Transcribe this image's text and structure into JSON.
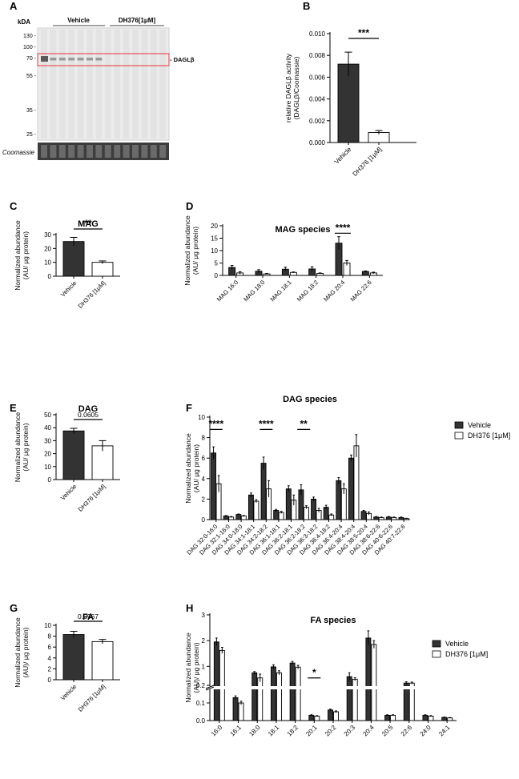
{
  "panel_labels": [
    "A",
    "B",
    "C",
    "D",
    "E",
    "F",
    "G",
    "H"
  ],
  "blot": {
    "kda_label": "kDA",
    "markers": [
      "130 -",
      "100 -",
      "70 -",
      "55 -",
      "35 -",
      "25 -"
    ],
    "lane_groups": [
      "Vehicle",
      "DH376[1μM]"
    ],
    "band_label": "- DAGLβ",
    "loading_label": "Coomassie"
  },
  "legend": {
    "vehicle": "Vehicle",
    "treated": "DH376 [1μM]"
  },
  "colors": {
    "vehicle": "#333333",
    "treated": "#ffffff",
    "highlight": "#e8323c"
  },
  "chart_data": [
    {
      "id": "B",
      "type": "bar",
      "title": "",
      "ylabel": "relative DAGLβ activity\n(DAGLβ/Coomassie)",
      "ylim": [
        0,
        0.01
      ],
      "yticks": [
        "0.000",
        "0.002",
        "0.004",
        "0.006",
        "0.008",
        "0.010"
      ],
      "categories": [
        "Vehicle",
        "DH376 [1μM]"
      ],
      "values": [
        0.0072,
        0.00092
      ],
      "errors": [
        0.0011,
        0.00018
      ],
      "annotations": [
        {
          "text": "***"
        }
      ]
    },
    {
      "id": "C",
      "type": "bar",
      "title": "MAG",
      "ylabel": "Normalized abundance\n(AU/ μg protein)",
      "ylim": [
        0,
        30
      ],
      "yticks": [
        "0",
        "10",
        "20",
        "30"
      ],
      "categories": [
        "Vehicle",
        "DH376 [1μM]"
      ],
      "values": [
        25,
        10
      ],
      "errors": [
        3,
        1
      ],
      "annotations": [
        {
          "text": "**"
        }
      ]
    },
    {
      "id": "D",
      "type": "bar",
      "title": "MAG species",
      "ylabel": "Normalized abundance\n(AU/ μg protein)",
      "ylim": [
        0,
        20
      ],
      "yticks": [
        "0",
        "5",
        "10",
        "15",
        "20"
      ],
      "categories": [
        "MAG 16:0",
        "MAG 18:0",
        "MAG 18:1",
        "MAG 18:2",
        "MAG 20:4",
        "MAG 22:6"
      ],
      "series": [
        {
          "values": [
            3.2,
            1.7,
            2.5,
            2.6,
            13.0,
            1.6
          ],
          "errors": [
            0.8,
            0.6,
            0.8,
            0.9,
            2.6,
            0.2
          ]
        },
        {
          "values": [
            1.0,
            0.6,
            1.2,
            0.8,
            5.0,
            1.0
          ],
          "errors": [
            0.5,
            0.2,
            0.2,
            0.2,
            1.0,
            0.3
          ]
        }
      ],
      "annotations": [
        {
          "text": "****"
        }
      ]
    },
    {
      "id": "E",
      "type": "bar",
      "title": "DAG",
      "ylabel": "Normalized abundance\n(AU/ μg protein)",
      "ylim": [
        0,
        50
      ],
      "yticks": [
        "0",
        "10",
        "20",
        "30",
        "40",
        "50"
      ],
      "categories": [
        "Vehicle",
        "DH376 [1μM]"
      ],
      "values": [
        37.5,
        26
      ],
      "errors": [
        2,
        4
      ],
      "annotations": [
        {
          "text": "0.0605"
        }
      ]
    },
    {
      "id": "F",
      "type": "bar",
      "title": "DAG species",
      "ylabel": "Normalized abundance\n(AU/ μg protein)",
      "ylim": [
        0,
        10
      ],
      "yticks": [
        "0",
        "2",
        "4",
        "6",
        "8",
        "10"
      ],
      "categories": [
        "DAG 32:0-16:0",
        "DAG 32:1-16:0",
        "DAG 34:0-18:0",
        "DAG 34:1-18:1",
        "DAG 34:2-18:2",
        "DAG 36:1-18:1",
        "DAG 36:2-18:1",
        "DAG 36:2-18:2",
        "DAG 36:3-18:2",
        "DAG 36:4-18:2",
        "DAG 36:4-20:4",
        "DAG 38:4-20:4",
        "DAG 38:5-20:4",
        "DAG 38:6-22:6",
        "DAG 40:6-22:6",
        "DAG 40:7-22:6"
      ],
      "series": [
        {
          "name": "Vehicle",
          "values": [
            6.5,
            0.35,
            0.5,
            2.4,
            5.5,
            0.9,
            3.0,
            2.9,
            2.0,
            1.2,
            3.8,
            6.0,
            0.8,
            0.25,
            0.25,
            0.2
          ],
          "errors": [
            0.6,
            0.05,
            0.05,
            0.2,
            0.6,
            0.1,
            0.3,
            0.5,
            0.2,
            0.2,
            0.3,
            0.3,
            0.1,
            0.05,
            0.05,
            0.05
          ]
        },
        {
          "name": "DH376 [1μM]",
          "values": [
            3.5,
            0.25,
            0.35,
            1.8,
            3.0,
            0.7,
            1.9,
            1.2,
            0.9,
            0.45,
            3.0,
            7.2,
            0.6,
            0.2,
            0.2,
            0.1
          ],
          "errors": [
            0.8,
            0.05,
            0.05,
            0.15,
            0.8,
            0.1,
            0.5,
            0.15,
            0.2,
            0.1,
            0.5,
            1.1,
            0.15,
            0.05,
            0.05,
            0.03
          ]
        }
      ],
      "annotations": [
        {
          "text": "****"
        },
        {
          "text": "****"
        },
        {
          "text": "**"
        }
      ],
      "legend": "top-right"
    },
    {
      "id": "G",
      "type": "bar",
      "title": "FA",
      "ylabel": "Normalized abundance\n(AU)/ μg protein)",
      "ylim": [
        0,
        10
      ],
      "yticks": [
        "0",
        "2",
        "4",
        "6",
        "8",
        "10"
      ],
      "categories": [
        "Vehicle",
        "DH376 [1μM]"
      ],
      "values": [
        8.3,
        7.0
      ],
      "errors": [
        0.6,
        0.4
      ],
      "annotations": [
        {
          "text": "0.0967"
        }
      ]
    },
    {
      "id": "H",
      "type": "bar",
      "title": "FA species",
      "ylabel": "Normalized abundance\n(AU)/ μg protein)",
      "ylim": [
        0,
        3
      ],
      "axis_break": [
        0.2,
        0.2
      ],
      "yticks": [
        "0.0",
        "0.1",
        "0.2",
        "1",
        "2",
        "3"
      ],
      "categories": [
        "16:0",
        "16:1",
        "18:0",
        "18:1",
        "18:2",
        "20:1",
        "20:2",
        "20:3",
        "20:4",
        "20:5",
        "22:6",
        "24:0",
        "24:1"
      ],
      "series": [
        {
          "name": "Vehicle",
          "values": [
            1.95,
            0.13,
            0.75,
            0.98,
            1.13,
            0.03,
            0.06,
            0.6,
            2.1,
            0.03,
            0.35,
            0.03,
            0.018
          ],
          "errors": [
            0.15,
            0.01,
            0.05,
            0.08,
            0.06,
            0.003,
            0.005,
            0.15,
            0.28,
            0.003,
            0.05,
            0.003,
            0.002
          ]
        },
        {
          "name": "DH376 [1μM]",
          "values": [
            1.62,
            0.1,
            0.55,
            0.75,
            0.97,
            0.025,
            0.05,
            0.5,
            1.85,
            0.03,
            0.35,
            0.025,
            0.015
          ],
          "errors": [
            0.12,
            0.01,
            0.15,
            0.08,
            0.07,
            0.003,
            0.005,
            0.06,
            0.15,
            0.003,
            0.04,
            0.003,
            0.002
          ]
        }
      ],
      "annotations": [
        {
          "text": "*"
        }
      ],
      "legend": "top-right"
    }
  ]
}
